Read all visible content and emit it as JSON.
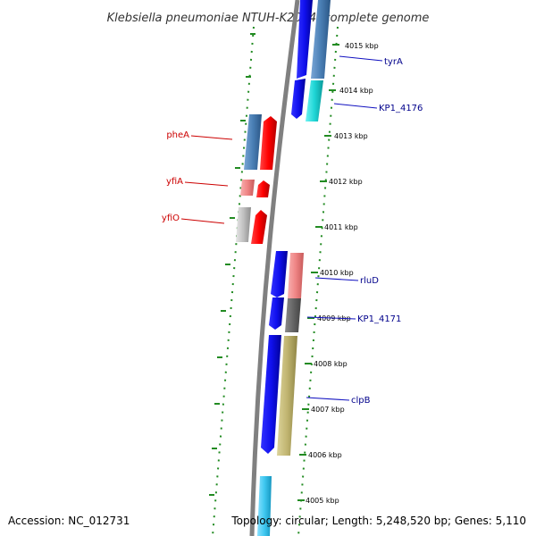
{
  "title": "Klebsiella pneumoniae NTUH-K2044, complete genome",
  "accession": "Accession: NC_012731",
  "topology": "Topology: circular; Length: 5,248,520 bp; Genes: 5,110",
  "ruler_labels": [
    "4015 kbp",
    "4014 kbp",
    "4013 kbp",
    "4012 kbp",
    "4011 kbp",
    "4010 kbp",
    "4009 kbp",
    "4008 kbp",
    "4007 kbp",
    "4006 kbp",
    "4005 kbp"
  ],
  "genes_right": [
    {
      "name": "tyrA",
      "color": "#00008b"
    },
    {
      "name": "KP1_4176",
      "color": "#00008b"
    },
    {
      "name": "rluD",
      "color": "#00008b"
    },
    {
      "name": "KP1_4171",
      "color": "#00008b"
    },
    {
      "name": "clpB",
      "color": "#00008b"
    }
  ],
  "genes_left": [
    {
      "name": "pheA",
      "color": "#cc0000"
    },
    {
      "name": "yfiA",
      "color": "#cc0000"
    },
    {
      "name": "yfiO",
      "color": "#cc0000"
    }
  ],
  "colors": {
    "backbone": "#808080",
    "tick": "#228b22",
    "cds_forward": "#1a1aff",
    "cds_reverse": "#ff1a1a",
    "steelblue": "#4a7fb5",
    "cyan": "#1fd6d6",
    "salmon": "#ef8585",
    "gray": "#c0c0c0",
    "darkgray": "#6a6a6a",
    "olive": "#c0b470",
    "skyblue": "#3fc8f0"
  }
}
